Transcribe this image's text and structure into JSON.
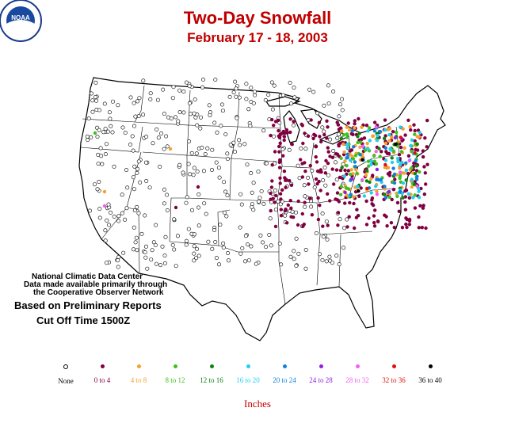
{
  "title": "Two-Day Snowfall",
  "subtitle": "February 17 - 18, 2003",
  "info": {
    "line1": "National Climatic Data Center",
    "line2": "Data made available primarily through",
    "line3": "the Cooperative Observer Network",
    "line4": "Based on Preliminary Reports",
    "line5": "Cut Off Time 1500Z"
  },
  "legend": [
    {
      "label": "None",
      "color": "#000000",
      "hollow": true
    },
    {
      "label": "0 to 4",
      "color": "#800040"
    },
    {
      "label": "4 to 8",
      "color": "#f5a030"
    },
    {
      "label": "8 to 12",
      "color": "#40c020"
    },
    {
      "label": "12 to 16",
      "color": "#108010"
    },
    {
      "label": "16 to 20",
      "color": "#20d0f0"
    },
    {
      "label": "20 to 24",
      "color": "#1080e0"
    },
    {
      "label": "24 to 28",
      "color": "#9020e0"
    },
    {
      "label": "28 to 32",
      "color": "#f060f0"
    },
    {
      "label": "32 to 36",
      "color": "#e01010"
    },
    {
      "label": "36 to 40",
      "color": "#000000"
    }
  ],
  "units": "Inches",
  "logo_text": "NOAA"
}
